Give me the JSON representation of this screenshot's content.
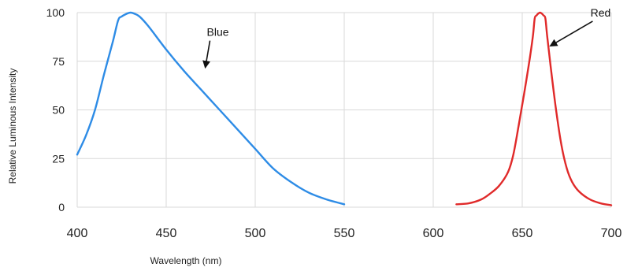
{
  "chart_data": {
    "type": "line",
    "xlabel": "Wavelength (nm)",
    "ylabel": "Relative Luminous Intensity",
    "xlim": [
      400,
      700
    ],
    "ylim": [
      0,
      100
    ],
    "x_ticks": [
      400,
      450,
      500,
      550,
      600,
      650,
      700
    ],
    "y_ticks": [
      0,
      25,
      50,
      75,
      100
    ],
    "grid": true,
    "legend": "none",
    "series": [
      {
        "name": "Blue",
        "color": "#2e8ce6",
        "x": [
          400,
          405,
          410,
          415,
          420,
          423,
          425,
          428,
          430,
          432,
          435,
          440,
          450,
          460,
          470,
          480,
          490,
          500,
          510,
          520,
          530,
          540,
          550
        ],
        "y": [
          27,
          37,
          50,
          68,
          85,
          96,
          98,
          99.5,
          100,
          99.5,
          98,
          93,
          81,
          70,
          60,
          50,
          40,
          30,
          20,
          13,
          7.5,
          4,
          1.5
        ]
      },
      {
        "name": "Red",
        "color": "#e02a2a",
        "x": [
          613,
          620,
          627,
          632,
          637,
          642,
          645,
          648,
          651,
          654,
          656,
          657,
          658,
          659,
          660,
          661,
          662,
          663,
          664,
          666,
          669,
          672,
          675,
          678,
          682,
          688,
          694,
          700
        ],
        "y": [
          1.5,
          2,
          4,
          7,
          11,
          18,
          27,
          42,
          58,
          75,
          88,
          97,
          98.5,
          99.5,
          100,
          99.5,
          98.5,
          97,
          88,
          72,
          50,
          32,
          20,
          13,
          8,
          4,
          2,
          1
        ]
      }
    ],
    "annotations": [
      {
        "text": "Blue",
        "x": 479,
        "y": 88,
        "arrow_to": [
          472,
          72
        ]
      },
      {
        "text": "Red",
        "x": 694,
        "y": 98,
        "arrow_to": [
          666,
          83
        ]
      }
    ]
  }
}
